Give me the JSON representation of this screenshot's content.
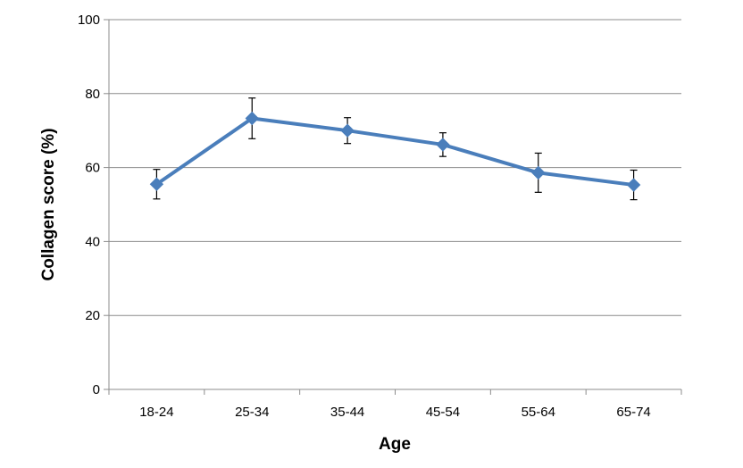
{
  "chart_data": {
    "type": "line",
    "xlabel": "Age",
    "ylabel": "Collagen score (%)",
    "categories": [
      "18-24",
      "25-34",
      "35-44",
      "45-54",
      "55-64",
      "65-74"
    ],
    "series": [
      {
        "values": [
          55.5,
          73.3,
          70.0,
          66.2,
          58.6,
          55.3
        ],
        "error": [
          4.0,
          5.5,
          3.5,
          3.2,
          5.3,
          4.0
        ],
        "color": "#4a7ebb",
        "marker": "diamond"
      }
    ],
    "ylim": [
      0,
      100
    ],
    "yticks": [
      0,
      20,
      40,
      60,
      80,
      100
    ],
    "grid": true
  }
}
